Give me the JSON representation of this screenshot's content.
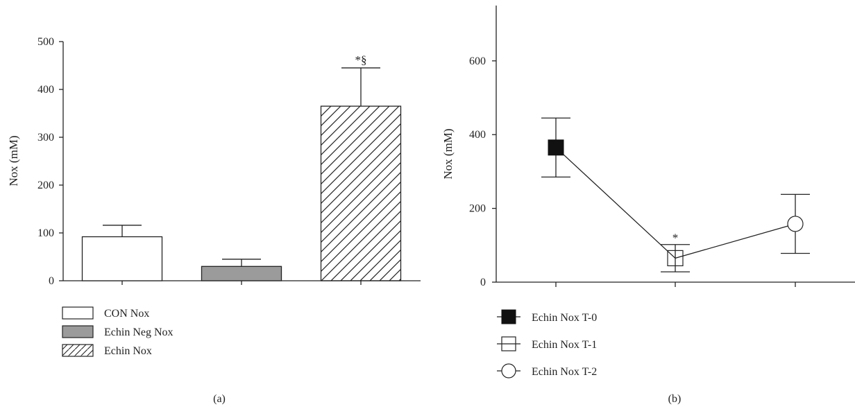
{
  "chart_data": [
    {
      "type": "bar",
      "panel_label": "(a)",
      "title": "",
      "xlabel": "",
      "ylabel": "Nox (mM)",
      "ylim": [
        0,
        500
      ],
      "yticks": [
        0,
        100,
        200,
        300,
        400,
        500
      ],
      "grid": false,
      "legend_placement": "bottom-left",
      "categories": [
        "CON Nox",
        "Echin Neg Nox",
        "Echin Nox"
      ],
      "values": [
        92,
        30,
        365
      ],
      "errors": [
        24,
        15,
        80
      ],
      "fills": [
        "white",
        "gray",
        "hatched"
      ],
      "fill_colors": [
        "#ffffff",
        "#9b9b9b",
        "#ffffff"
      ],
      "annotations": [
        {
          "category": "Echin Nox",
          "text": "*§"
        }
      ]
    },
    {
      "type": "line",
      "panel_label": "(b)",
      "title": "",
      "xlabel": "",
      "ylabel": "Nox (mM)",
      "ylim": [
        0,
        750
      ],
      "yticks": [
        0,
        200,
        400,
        600
      ],
      "grid": false,
      "legend_placement": "bottom-left",
      "categories": [
        "Echin Nox T-0",
        "Echin Nox T-1",
        "Echin Nox T-2"
      ],
      "values": [
        365,
        65,
        158
      ],
      "errors": [
        80,
        37,
        80
      ],
      "markers": [
        "filled-square",
        "open-square",
        "open-circle"
      ],
      "annotations": [
        {
          "category": "Echin Nox T-1",
          "text": "*"
        }
      ]
    }
  ]
}
